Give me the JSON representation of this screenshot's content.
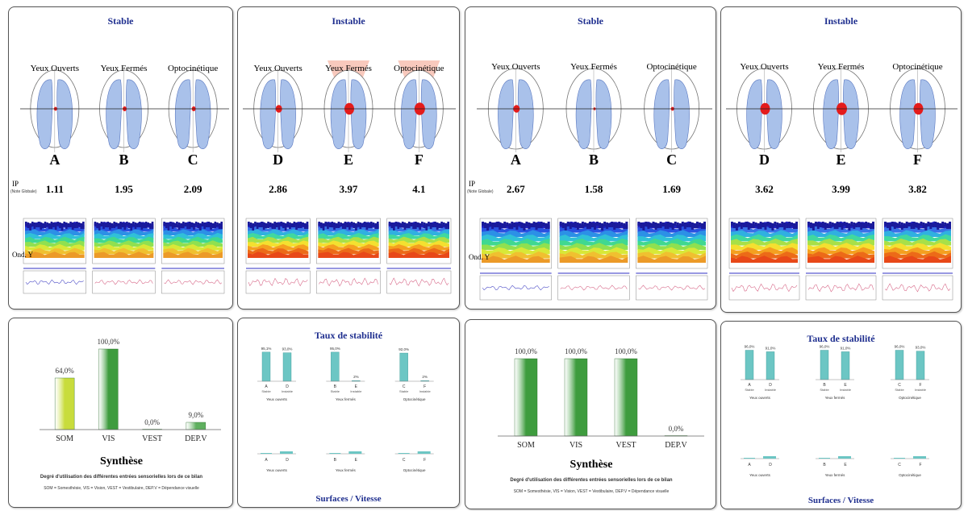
{
  "report1": {
    "stable": {
      "title": "Stable",
      "conditions": [
        {
          "name": "Yeux Ouverts",
          "letter": "A",
          "ip": "1.11"
        },
        {
          "name": "Yeux Fermés",
          "letter": "B",
          "ip": "1.95"
        },
        {
          "name": "Optocinétique",
          "letter": "C",
          "ip": "2.09"
        }
      ],
      "ip_label": "IP",
      "ip_sublabel": "(Note Globale)",
      "ond_label": "Ond. Y"
    },
    "instable": {
      "title": "Instable",
      "conditions": [
        {
          "name": "Yeux Ouverts",
          "letter": "D",
          "ip": "2.86"
        },
        {
          "name": "Yeux Fermés",
          "letter": "E",
          "ip": "3.97"
        },
        {
          "name": "Optocinétique",
          "letter": "F",
          "ip": "4.1"
        }
      ]
    },
    "synthese": {
      "title": "Synthèse",
      "subtitle": "Degré d'utilisation des différentes entrées sensorielles lors de ce bilan",
      "legend": "SOM = Somesthésie, VIS = Vision, VEST = Vestibulaire, DEP.V = Dépendance visuelle",
      "chart_data": {
        "type": "bar",
        "categories": [
          "SOM",
          "VIS",
          "VEST",
          "DEP.V"
        ],
        "values": [
          64.0,
          100.0,
          0.0,
          9.0
        ],
        "labels": [
          "64,0%",
          "100,0%",
          "0,0%",
          "9,0%"
        ],
        "colors": [
          "#c8dc3c",
          "#3e9c3e",
          "#3e9c3e",
          "#5fb05f"
        ],
        "ylim": [
          0,
          100
        ]
      }
    },
    "taux": {
      "title": "Taux de stabilité",
      "footer_title": "Surfaces / Vitesse",
      "groups": [
        "Yeux ouverts",
        "Yeux fermés",
        "Optocinétique"
      ],
      "chart_data": {
        "type": "bar",
        "pairs": [
          {
            "letters": [
              "A",
              "D"
            ],
            "values": [
              95.1,
              93.0
            ],
            "labels": [
              "95,1%",
              "93,0%"
            ]
          },
          {
            "letters": [
              "B",
              "E"
            ],
            "values": [
              95.0,
              2.0
            ],
            "labels": [
              "95,0%",
              "2%"
            ]
          },
          {
            "letters": [
              "C",
              "F"
            ],
            "values": [
              92.0,
              2.0
            ],
            "labels": [
              "92,0%",
              "2%"
            ]
          }
        ],
        "col_labels": [
          "Stable",
          "Instable"
        ]
      }
    }
  },
  "report2": {
    "stable": {
      "title": "Stable",
      "conditions": [
        {
          "name": "Yeux Ouverts",
          "letter": "A",
          "ip": "2.67"
        },
        {
          "name": "Yeux Fermés",
          "letter": "B",
          "ip": "1.58"
        },
        {
          "name": "Optocinétique",
          "letter": "C",
          "ip": "1.69"
        }
      ],
      "ip_label": "IP",
      "ip_sublabel": "(Note Globale)",
      "ond_label": "Ond. Y"
    },
    "instable": {
      "title": "Instable",
      "conditions": [
        {
          "name": "Yeux Ouverts",
          "letter": "D",
          "ip": "3.62"
        },
        {
          "name": "Yeux Fermés",
          "letter": "E",
          "ip": "3.99"
        },
        {
          "name": "Optocinétique",
          "letter": "F",
          "ip": "3.82"
        }
      ]
    },
    "synthese": {
      "title": "Synthèse",
      "subtitle": "Degré d'utilisation des différentes entrées sensorielles lors de ce bilan",
      "legend": "SOM = Somesthésie, VIS = Vision, VEST = Vestibulaire, DEP.V = Dépendance visuelle",
      "chart_data": {
        "type": "bar",
        "categories": [
          "SOM",
          "VIS",
          "VEST",
          "DEP.V"
        ],
        "values": [
          100.0,
          100.0,
          100.0,
          0.0
        ],
        "labels": [
          "100,0%",
          "100,0%",
          "100,0%",
          "0,0%"
        ],
        "colors": [
          "#3e9c3e",
          "#3e9c3e",
          "#3e9c3e",
          "#3e9c3e"
        ],
        "ylim": [
          0,
          100
        ]
      }
    },
    "taux": {
      "title": "Taux de stabilité",
      "footer_title": "Surfaces / Vitesse",
      "groups": [
        "Yeux ouverts",
        "Yeux fermés",
        "Optocinétique"
      ],
      "chart_data": {
        "type": "bar",
        "pairs": [
          {
            "letters": [
              "A",
              "D"
            ],
            "values": [
              96.0,
              91.0
            ],
            "labels": [
              "96,0%",
              "91,0%"
            ]
          },
          {
            "letters": [
              "B",
              "E"
            ],
            "values": [
              96.0,
              91.0
            ],
            "labels": [
              "96,0%",
              "91,0%"
            ]
          },
          {
            "letters": [
              "C",
              "F"
            ],
            "values": [
              96.0,
              93.0
            ],
            "labels": [
              "96,0%",
              "93,0%"
            ]
          }
        ],
        "col_labels": [
          "Stable",
          "Instable"
        ]
      }
    }
  }
}
